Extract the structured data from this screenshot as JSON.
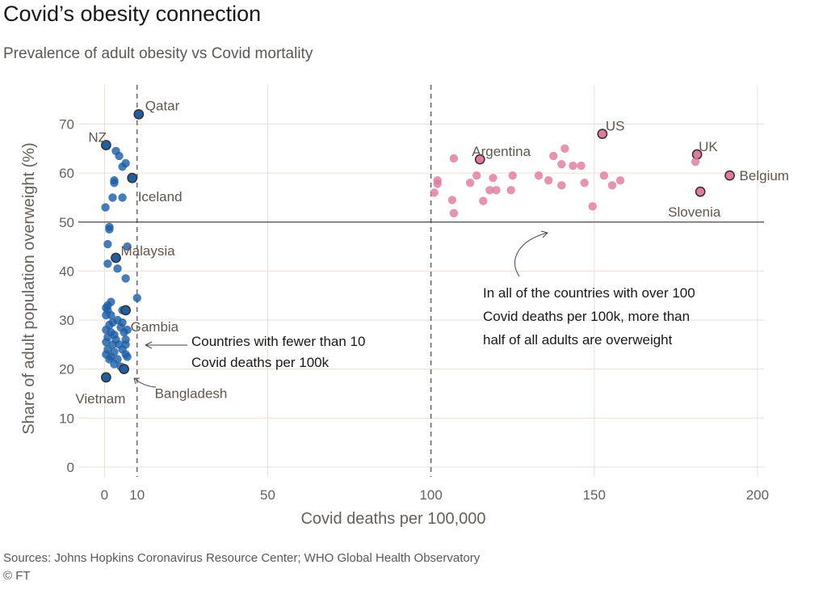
{
  "title": "Covid’s obesity connection",
  "subtitle": "Prevalence of adult obesity vs Covid mortality",
  "source": "Sources: Johns Hopkins Coronavirus Resource Center; WHO Global Health Observatory",
  "copyright": "© FT",
  "chart_data": {
    "type": "scatter",
    "xlabel": "Covid deaths per 100,000",
    "ylabel": "Share of adult population overweight (%)",
    "xlim": [
      -8,
      202
    ],
    "ylim": [
      -2,
      78
    ],
    "x_ticks": [
      0,
      10,
      50,
      100,
      150,
      200
    ],
    "y_ticks": [
      0,
      10,
      20,
      30,
      40,
      50,
      60,
      70
    ],
    "reference_line_y": 50,
    "dashed_lines_x": [
      10,
      100
    ],
    "colors": {
      "low": "#1f5fa6",
      "high": "#e07aa0",
      "grid": "#eadfd6",
      "refline": "#4a4642"
    },
    "series": [
      {
        "color": "#1f5fa6",
        "points": [
          [
            10.5,
            72
          ],
          [
            0.5,
            65.7
          ],
          [
            3.5,
            64.5
          ],
          [
            4.5,
            63.5
          ],
          [
            6.5,
            62
          ],
          [
            5.5,
            61.3
          ],
          [
            3,
            58.5
          ],
          [
            3,
            58
          ],
          [
            8.5,
            59
          ],
          [
            2.5,
            55
          ],
          [
            5.5,
            55
          ],
          [
            0.3,
            53
          ],
          [
            1.5,
            49
          ],
          [
            1.5,
            48.5
          ],
          [
            1,
            45.5
          ],
          [
            7,
            45
          ],
          [
            3.5,
            42.7
          ],
          [
            1,
            41.5
          ],
          [
            4,
            40.5
          ],
          [
            6.5,
            38.5
          ],
          [
            10,
            34.5
          ],
          [
            1,
            33
          ],
          [
            2,
            33.7
          ],
          [
            0.5,
            32.5
          ],
          [
            1,
            32
          ],
          [
            5.5,
            32
          ],
          [
            6.5,
            32
          ],
          [
            0.5,
            31
          ],
          [
            2,
            31
          ],
          [
            4,
            30
          ],
          [
            2.5,
            29.5
          ],
          [
            5.5,
            29.5
          ],
          [
            1.5,
            29
          ],
          [
            5,
            28.5
          ],
          [
            0.5,
            28
          ],
          [
            2,
            27.5
          ],
          [
            3,
            27
          ],
          [
            6,
            27.5
          ],
          [
            7,
            28
          ],
          [
            1,
            26.5
          ],
          [
            3.5,
            26
          ],
          [
            6.5,
            26
          ],
          [
            0.5,
            25.5
          ],
          [
            2.5,
            25
          ],
          [
            4.5,
            25
          ],
          [
            6.5,
            25
          ],
          [
            1,
            24
          ],
          [
            3,
            23.5
          ],
          [
            5.5,
            24
          ],
          [
            0.5,
            23
          ],
          [
            2,
            22.5
          ],
          [
            6.5,
            23
          ],
          [
            1.5,
            22
          ],
          [
            4,
            22
          ],
          [
            7,
            22.5
          ],
          [
            3,
            21
          ],
          [
            5,
            20.5
          ],
          [
            6,
            20
          ],
          [
            0.5,
            18.3
          ]
        ]
      },
      {
        "color": "#e07aa0",
        "points": [
          [
            152.5,
            68
          ],
          [
            141,
            65
          ],
          [
            137.5,
            63.5
          ],
          [
            107,
            63
          ],
          [
            115,
            62.8
          ],
          [
            181.5,
            63.8
          ],
          [
            181,
            62.3
          ],
          [
            140,
            61.8
          ],
          [
            143.5,
            61.5
          ],
          [
            146,
            61.5
          ],
          [
            191.5,
            59.5
          ],
          [
            133,
            59.5
          ],
          [
            114,
            59.5
          ],
          [
            119,
            59
          ],
          [
            125,
            59.5
          ],
          [
            153,
            59.5
          ],
          [
            102,
            58.5
          ],
          [
            112,
            58
          ],
          [
            136,
            58.5
          ],
          [
            147,
            58
          ],
          [
            158,
            58.5
          ],
          [
            102,
            57.8
          ],
          [
            140,
            57.5
          ],
          [
            155.5,
            57.5
          ],
          [
            118,
            56.5
          ],
          [
            124.5,
            56.5
          ],
          [
            101,
            56
          ],
          [
            120,
            56.5
          ],
          [
            182.5,
            56.2
          ],
          [
            106.5,
            54.5
          ],
          [
            116,
            54.3
          ],
          [
            149.5,
            53.2
          ],
          [
            107,
            51.8
          ]
        ]
      }
    ],
    "point_labels": [
      {
        "text": "Qatar",
        "x": 10.5,
        "y": 72,
        "dx": 8,
        "dy": -11
      },
      {
        "text": "NZ",
        "x": 0.5,
        "y": 65.7,
        "dx": -22,
        "dy": -10
      },
      {
        "text": "Iceland",
        "x": 8.5,
        "y": 59,
        "dx": 7,
        "dy": 23
      },
      {
        "text": "Malaysia",
        "x": 3.5,
        "y": 42.7,
        "dx": 6,
        "dy": -9
      },
      {
        "text": "Gambia",
        "x": 6.5,
        "y": 32,
        "dx": 6,
        "dy": 20
      },
      {
        "text": "Vietnam",
        "x": 0.5,
        "y": 18.3,
        "dx": -38,
        "dy": 26
      },
      {
        "text": "Bangladesh",
        "x": 6,
        "y": 20,
        "dx": 38,
        "dy": 30
      },
      {
        "text": "Argentina",
        "x": 115,
        "y": 62.8,
        "dx": -10,
        "dy": -10
      },
      {
        "text": "US",
        "x": 152.5,
        "y": 68,
        "dx": 4,
        "dy": -10
      },
      {
        "text": "UK",
        "x": 181.5,
        "y": 63.8,
        "dx": 2,
        "dy": -10
      },
      {
        "text": "Belgium",
        "x": 191.5,
        "y": 59.5,
        "dx": 12,
        "dy": 0
      },
      {
        "text": "Slovenia",
        "x": 182.5,
        "y": 56.2,
        "dx": -40,
        "dy": 25
      }
    ],
    "highlight_points": [
      [
        10.5,
        72
      ],
      [
        0.5,
        65.7
      ],
      [
        8.5,
        59
      ],
      [
        3.5,
        42.7
      ],
      [
        6.5,
        32
      ],
      [
        0.5,
        18.3
      ],
      [
        6,
        20
      ],
      [
        115,
        62.8
      ],
      [
        152.5,
        68
      ],
      [
        181.5,
        63.8
      ],
      [
        191.5,
        59.5
      ],
      [
        182.5,
        56.2
      ]
    ],
    "annotations": [
      {
        "lines": [
          "Countries with fewer than 10",
          "Covid deaths per 100k"
        ]
      },
      {
        "lines": [
          "In all of the countries with over 100",
          "Covid deaths per 100k, more than",
          "half of all adults are overweight"
        ]
      }
    ]
  }
}
